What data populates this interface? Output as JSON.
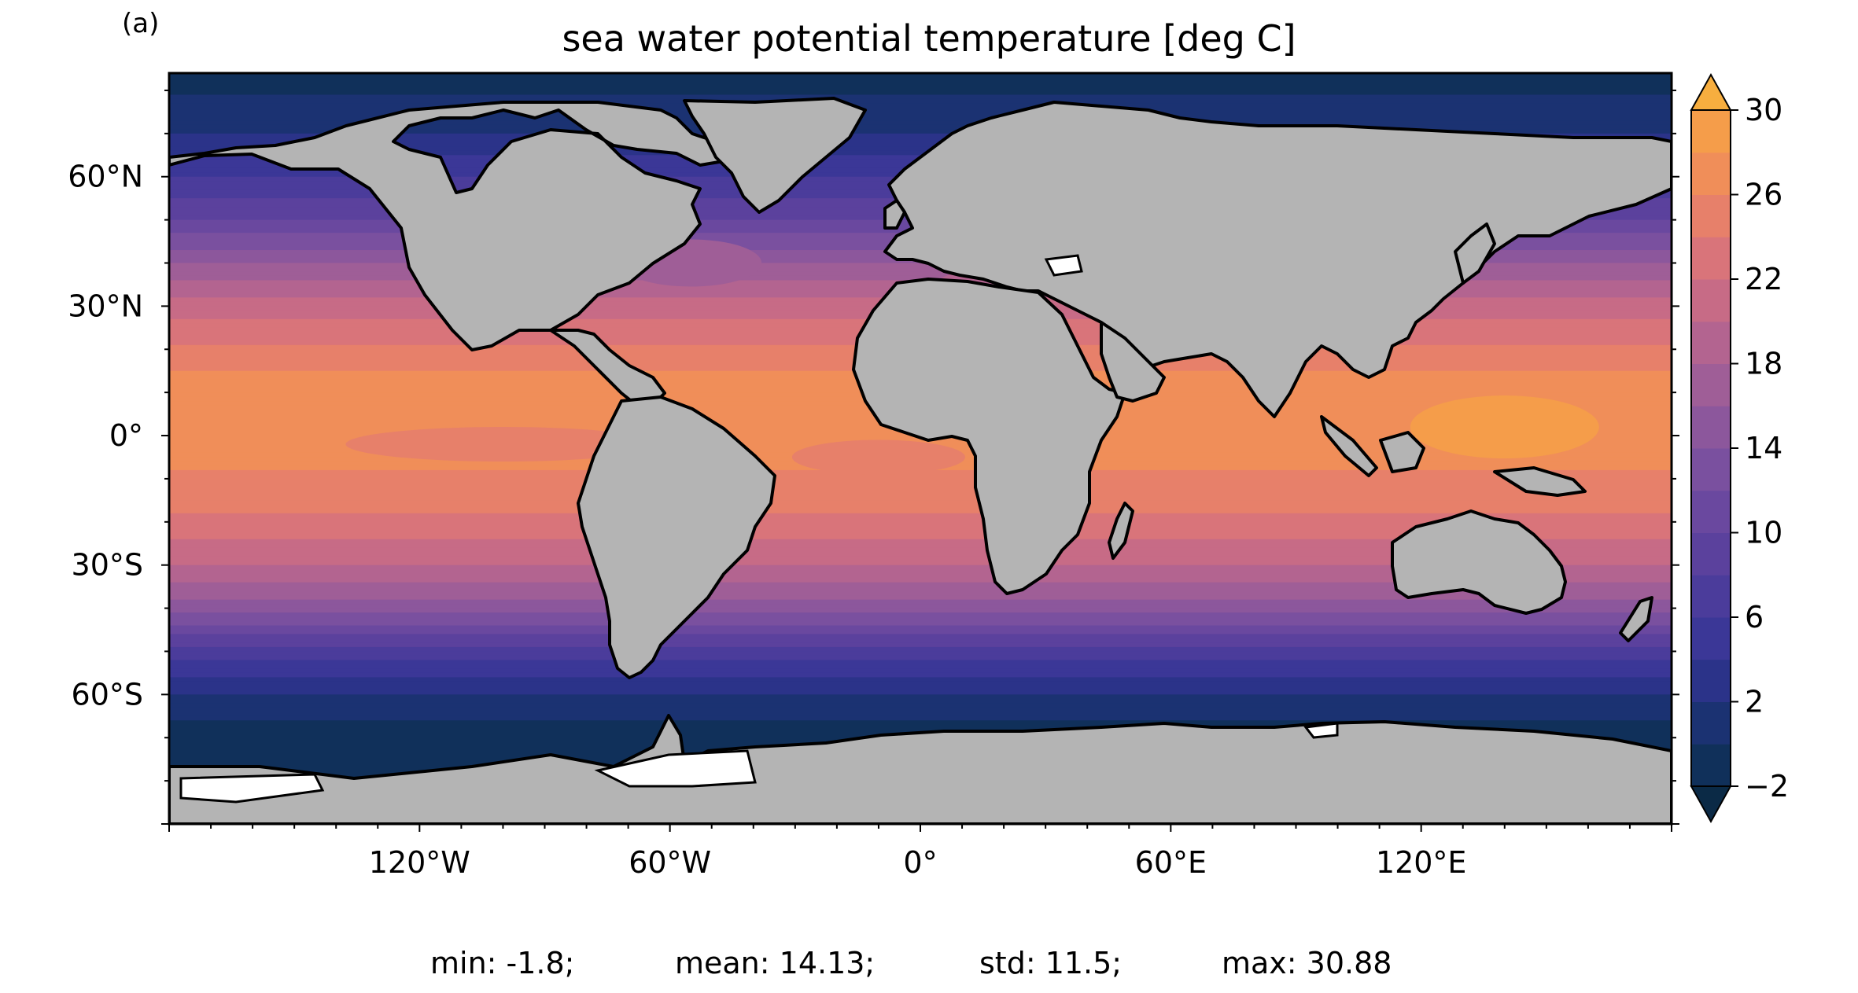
{
  "panel_label": "(a)",
  "title": "sea water potential temperature [deg C]",
  "stats": {
    "min": "min: -1.8;",
    "mean": "mean: 14.13;",
    "std": "std: 11.5;",
    "max": "max: 30.88"
  },
  "colors": {
    "land": "#b4b4b4",
    "ice": "#ffffff",
    "coast": "#000000",
    "levels": [
      "#0b2a46",
      "#10305a",
      "#1b3272",
      "#2b3389",
      "#3b3797",
      "#4b3c9b",
      "#5b419d",
      "#6a489f",
      "#7a509f",
      "#8c579c",
      "#9f5e97",
      "#b36490",
      "#c76b86",
      "#d9747a",
      "#e7806a",
      "#f08e59",
      "#f59d4a",
      "#f7ae3f",
      "#f6be3a",
      "#f4cd3e",
      "#f1dc47",
      "#eaea55",
      "#e1f45e"
    ]
  },
  "chart_data": {
    "type": "heatmap",
    "title": "sea water potential temperature [deg C]",
    "variable": "sea water potential temperature",
    "units": "deg C",
    "projection": "PlateCarree",
    "lon_range": [
      -180,
      180
    ],
    "lat_range": [
      -90,
      90
    ],
    "x_ticks": [
      "120°W",
      "60°W",
      "0°",
      "60°E",
      "120°E"
    ],
    "y_ticks": [
      "60°N",
      "30°N",
      "0°",
      "30°S",
      "60°S"
    ],
    "colorbar": {
      "ticks": [
        "30",
        "26",
        "22",
        "18",
        "14",
        "10",
        "6",
        "2",
        "−2"
      ],
      "range": [
        -2,
        30
      ],
      "step": 2,
      "extend": "both"
    },
    "zonal_profile": [
      {
        "lat": 85,
        "value": -1.5
      },
      {
        "lat": 70,
        "value": 2
      },
      {
        "lat": 60,
        "value": 6
      },
      {
        "lat": 50,
        "value": 10
      },
      {
        "lat": 40,
        "value": 16
      },
      {
        "lat": 30,
        "value": 21
      },
      {
        "lat": 15,
        "value": 26
      },
      {
        "lat": 0,
        "value": 27
      },
      {
        "lat": -15,
        "value": 25
      },
      {
        "lat": -30,
        "value": 20
      },
      {
        "lat": -40,
        "value": 15
      },
      {
        "lat": -50,
        "value": 7
      },
      {
        "lat": -60,
        "value": 2
      },
      {
        "lat": -70,
        "value": -1.5
      }
    ],
    "min": -1.8,
    "mean": 14.13,
    "std": 11.5,
    "max": 30.88
  }
}
